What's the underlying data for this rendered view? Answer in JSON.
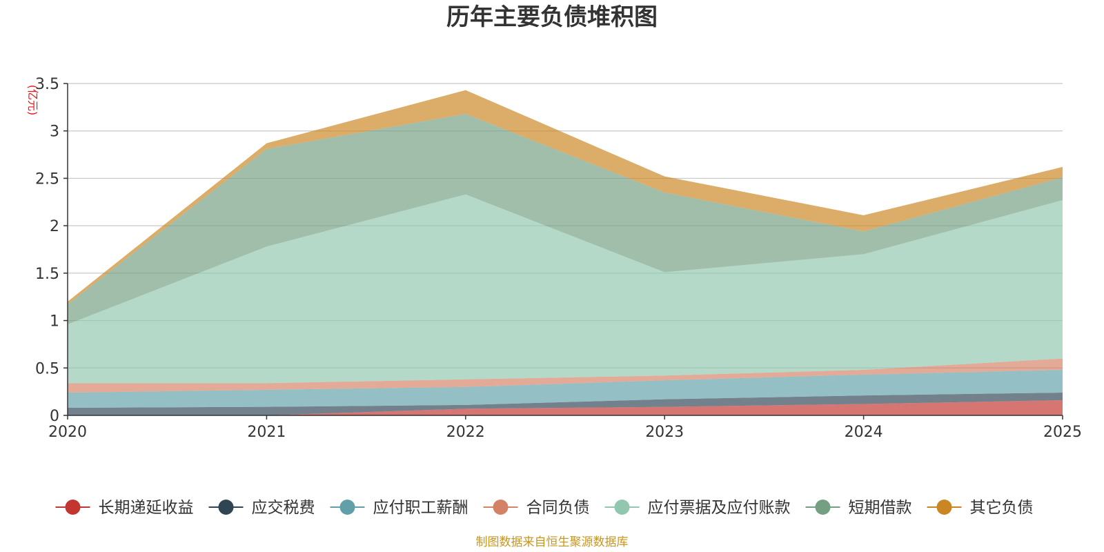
{
  "chart_data": {
    "type": "area",
    "stacked": true,
    "title": "历年主要负债堆积图",
    "unit_label": "(亿元)",
    "xlabel": "",
    "ylabel": "(亿元)",
    "categories": [
      "2020",
      "2021",
      "2022",
      "2023",
      "2024",
      "2025"
    ],
    "ylim": [
      0,
      3.5
    ],
    "yticks": [
      "0",
      "0.5",
      "1",
      "1.5",
      "2",
      "2.5",
      "3",
      "3.5"
    ],
    "grid": true,
    "legend_position": "bottom",
    "series": [
      {
        "name": "长期递延收益",
        "color": "#c23531",
        "values": [
          0.0,
          0.0,
          0.07,
          0.09,
          0.12,
          0.16
        ]
      },
      {
        "name": "应交税费",
        "color": "#2f4554",
        "values": [
          0.08,
          0.09,
          0.04,
          0.08,
          0.09,
          0.08
        ]
      },
      {
        "name": "应付职工薪酬",
        "color": "#61a0a8",
        "values": [
          0.16,
          0.18,
          0.19,
          0.2,
          0.22,
          0.24
        ]
      },
      {
        "name": "合同负债",
        "color": "#d48265",
        "values": [
          0.1,
          0.07,
          0.08,
          0.05,
          0.05,
          0.12
        ]
      },
      {
        "name": "应付票据及应付账款",
        "color": "#91c7ae",
        "values": [
          0.62,
          1.44,
          1.95,
          1.09,
          1.22,
          1.67
        ]
      },
      {
        "name": "短期借款",
        "color": "#749f83",
        "values": [
          0.21,
          1.03,
          0.85,
          0.84,
          0.24,
          0.24
        ]
      },
      {
        "name": "其它负债",
        "color": "#ca8622",
        "values": [
          0.03,
          0.06,
          0.25,
          0.17,
          0.17,
          0.11
        ]
      }
    ],
    "source_note": "制图数据来自恒生聚源数据库"
  }
}
